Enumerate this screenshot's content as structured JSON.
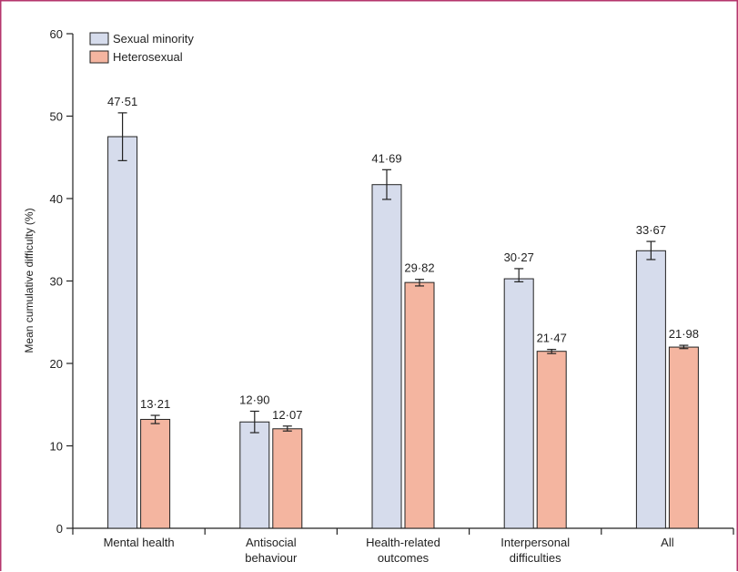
{
  "chart_data": {
    "type": "bar",
    "ylabel": "Mean cumulative difficulty (%)",
    "ylim": [
      0,
      60
    ],
    "yticks": [
      0,
      10,
      20,
      30,
      40,
      50,
      60
    ],
    "categories": [
      [
        "Mental health"
      ],
      [
        "Antisocial",
        "behaviour"
      ],
      [
        "Health-related",
        "outcomes"
      ],
      [
        "Interpersonal",
        "difficulties"
      ],
      [
        "All"
      ]
    ],
    "series": [
      {
        "name": "Sexual minority",
        "color": "#d6dcec",
        "values": [
          47.51,
          12.9,
          41.69,
          30.27,
          33.67
        ],
        "labels": [
          "47·51",
          "12·90",
          "41·69",
          "30·27",
          "33·67"
        ],
        "ci": [
          [
            44.6,
            50.4
          ],
          [
            11.6,
            14.2
          ],
          [
            39.9,
            43.5
          ],
          [
            29.9,
            31.5
          ],
          [
            32.6,
            34.8
          ]
        ]
      },
      {
        "name": "Heterosexual",
        "color": "#f4b5a0",
        "values": [
          13.21,
          12.07,
          29.82,
          21.47,
          21.98
        ],
        "labels": [
          "13·21",
          "12·07",
          "29·82",
          "21·47",
          "21·98"
        ],
        "ci": [
          [
            12.7,
            13.7
          ],
          [
            11.8,
            12.4
          ],
          [
            29.4,
            30.2
          ],
          [
            21.2,
            21.7
          ],
          [
            21.8,
            22.2
          ]
        ]
      }
    ],
    "legend_position": "top-left",
    "grid": false
  },
  "colors": {
    "frame": "#b5366d",
    "axis": "#222222"
  }
}
